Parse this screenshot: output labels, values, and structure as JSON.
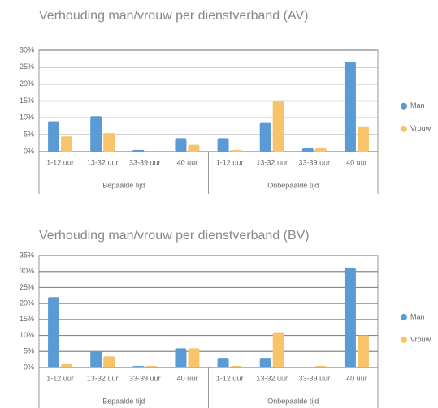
{
  "chart_data": [
    {
      "type": "bar",
      "title": "Verhouding man/vrouw per dienstverband (AV)",
      "groups": [
        {
          "name": "Bepaalde tijd",
          "categories": [
            "1-12 uur",
            "13-32 uur",
            "33-39 uur",
            "40 uur"
          ]
        },
        {
          "name": "Onbepaalde tijd",
          "categories": [
            "1-12 uur",
            "13-32 uur",
            "33-39 uur",
            "40 uur"
          ]
        }
      ],
      "series": [
        {
          "name": "Man",
          "color": "#5b9bd5",
          "values": [
            9,
            10.5,
            0.5,
            4,
            4,
            8.5,
            1,
            26.5
          ]
        },
        {
          "name": "Vrouw",
          "color": "#f7c46c",
          "values": [
            4.5,
            5.5,
            0,
            2,
            0.5,
            15,
            1,
            7.5
          ]
        }
      ],
      "ylim": [
        0,
        30
      ],
      "yticks": [
        {
          "value": 0,
          "label": "0%"
        },
        {
          "value": 5,
          "label": "5%"
        },
        {
          "value": 10,
          "label": "10%"
        },
        {
          "value": 15,
          "label": "15%"
        },
        {
          "value": 20,
          "label": "20%"
        },
        {
          "value": 25,
          "label": "25%"
        },
        {
          "value": 30,
          "label": "30%"
        }
      ],
      "grid": true,
      "legend": "right"
    },
    {
      "type": "bar",
      "title": "Verhouding man/vrouw per dienstverband (BV)",
      "groups": [
        {
          "name": "Bepaalde tijd",
          "categories": [
            "1-12 uur",
            "13-32 uur",
            "33-39 uur",
            "40 uur"
          ]
        },
        {
          "name": "Onbepaalde tijd",
          "categories": [
            "1-12 uur",
            "13-32 uur",
            "33-39 uur",
            "40 uur"
          ]
        }
      ],
      "series": [
        {
          "name": "Man",
          "color": "#5b9bd5",
          "values": [
            22,
            5,
            0.5,
            6,
            3,
            3,
            0,
            31
          ]
        },
        {
          "name": "Vrouw",
          "color": "#f7c46c",
          "values": [
            1,
            3.5,
            0.5,
            6,
            0.5,
            11,
            0.5,
            10
          ]
        }
      ],
      "ylim": [
        0,
        35
      ],
      "yticks": [
        {
          "value": 0,
          "label": "0%"
        },
        {
          "value": 5,
          "label": "5%"
        },
        {
          "value": 10,
          "label": "10%"
        },
        {
          "value": 15,
          "label": "15%"
        },
        {
          "value": 20,
          "label": "20%"
        },
        {
          "value": 25,
          "label": "25%"
        },
        {
          "value": 30,
          "label": "30%"
        },
        {
          "value": 35,
          "label": "35%"
        }
      ],
      "grid": true,
      "legend": "right"
    }
  ]
}
